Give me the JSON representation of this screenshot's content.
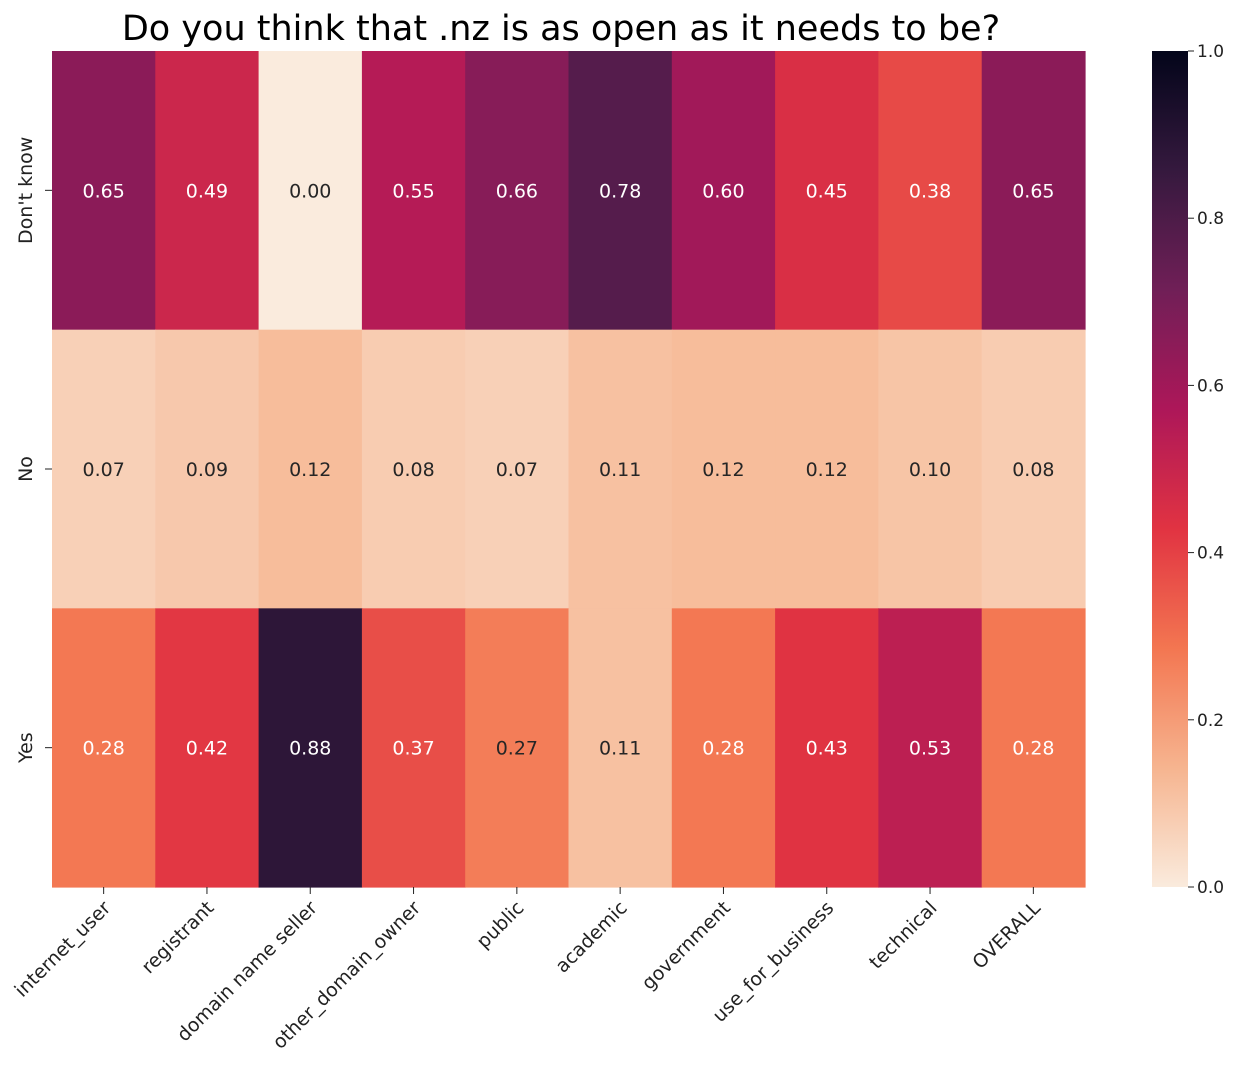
{
  "chart_data": {
    "type": "heatmap",
    "title": "Do you think that .nz is as open as it needs to be?",
    "xlabel": "",
    "ylabel": "",
    "x_categories": [
      "internet_user",
      "registrant",
      "domain name seller",
      "other_domain_owner",
      "public",
      "academic",
      "government",
      "use_for_business",
      "technical",
      "OVERALL"
    ],
    "y_categories": [
      "Don't know",
      "No",
      "Yes"
    ],
    "values": [
      [
        0.65,
        0.49,
        0.0,
        0.55,
        0.66,
        0.78,
        0.6,
        0.45,
        0.38,
        0.65
      ],
      [
        0.07,
        0.09,
        0.12,
        0.08,
        0.07,
        0.11,
        0.12,
        0.12,
        0.1,
        0.08
      ],
      [
        0.28,
        0.42,
        0.88,
        0.37,
        0.27,
        0.11,
        0.28,
        0.43,
        0.53,
        0.28
      ]
    ],
    "value_format": "0.00",
    "colorbar": {
      "vmin": 0.0,
      "vmax": 1.0,
      "ticks": [
        "0.0",
        "0.2",
        "0.4",
        "0.6",
        "0.8",
        "1.0"
      ],
      "colormap": "rocket_r"
    },
    "colors": {
      "stops": [
        "#faebdd",
        "#f6b48f",
        "#f37651",
        "#e13342",
        "#ad1759",
        "#701f57",
        "#35193e",
        "#03051a"
      ]
    }
  }
}
